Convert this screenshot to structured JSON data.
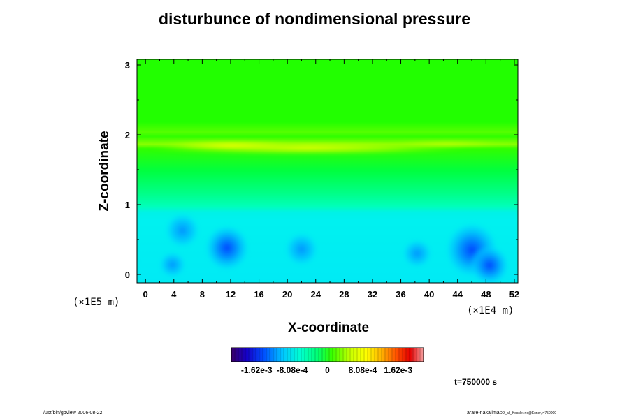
{
  "chart_data": {
    "type": "heatmap",
    "title": "disturbunce of nondimensional pressure",
    "xlabel": "X-coordinate",
    "ylabel": "Z-coordinate",
    "x_unit": "(×1E4 m)",
    "z_unit": "(×1E5 m)",
    "xlim": [
      -1.2,
      52.5
    ],
    "ylim": [
      -0.12,
      3.08
    ],
    "x_ticks": [
      "0",
      "4",
      "8",
      "12",
      "16",
      "20",
      "24",
      "28",
      "32",
      "36",
      "40",
      "44",
      "48",
      "52"
    ],
    "x_tick_values": [
      0,
      4,
      8,
      12,
      16,
      20,
      24,
      28,
      32,
      36,
      40,
      44,
      48,
      52
    ],
    "y_ticks": [
      "0",
      "1",
      "2",
      "3"
    ],
    "y_tick_values": [
      0,
      1,
      2,
      3
    ],
    "colorbar": {
      "range": [
        -0.0022,
        0.0022
      ],
      "tick_labels": [
        "-1.62e-3",
        "-8.08e-4",
        "0",
        "8.08e-4",
        "1.62e-3"
      ],
      "tick_values": [
        -0.00162,
        -0.000808,
        0,
        0.000808,
        0.00162
      ],
      "colors": [
        "#3b0068",
        "#1400c8",
        "#0050ff",
        "#00c8ff",
        "#00ffd0",
        "#00ff70",
        "#33ff00",
        "#c8ff00",
        "#ffff00",
        "#ffb400",
        "#ff5000",
        "#e60000",
        "#f5a0a0"
      ]
    },
    "field_features": [
      {
        "name": "upper-band",
        "z": 2.05,
        "value": 0.0003
      },
      {
        "name": "yellow-band",
        "x": 22,
        "z": 1.8,
        "value": 0.0012
      },
      {
        "name": "low-cell",
        "x": 11.5,
        "z": 0.38,
        "value": -0.001
      },
      {
        "name": "low-cell",
        "x": 22.0,
        "z": 0.36,
        "value": -0.00065
      },
      {
        "name": "low-cell",
        "x": 46.0,
        "z": 0.35,
        "value": -0.0013
      },
      {
        "name": "low-cell",
        "x": 5.2,
        "z": 0.63,
        "value": -0.0007
      },
      {
        "name": "low-cell",
        "x": 3.8,
        "z": 0.14,
        "value": -0.0004
      },
      {
        "name": "low-cell",
        "x": 38.3,
        "z": 0.3,
        "value": -0.0005
      },
      {
        "name": "low-cell",
        "x": 48.5,
        "z": 0.13,
        "value": -0.0008
      }
    ]
  },
  "annotations": {
    "time": "t=750000 s",
    "footer_left": "/usr/bin/gpview 2006-08-22",
    "footer_right": "arare-nakajima",
    "footer_right_small": "CO_all_Kessler.nc@Exner,t=750000"
  }
}
